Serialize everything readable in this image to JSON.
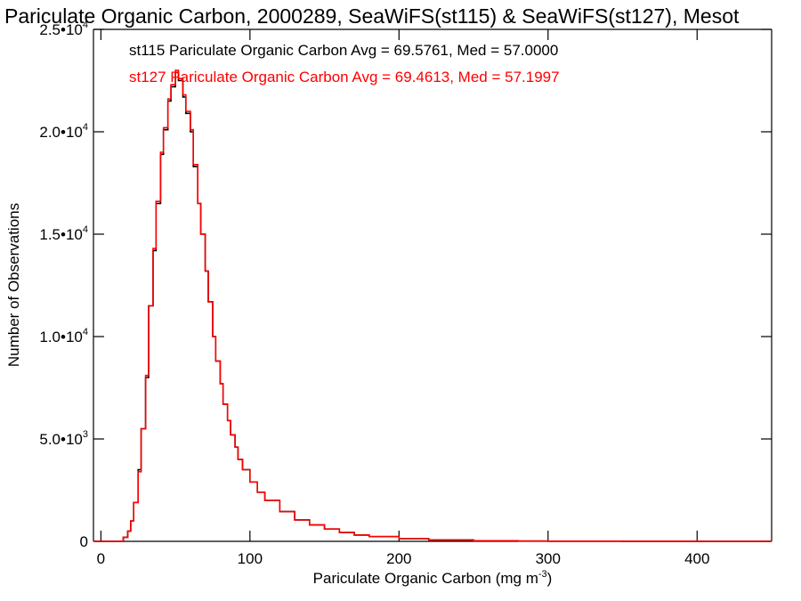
{
  "chart_data": {
    "type": "line",
    "title": "Pariculate Organic Carbon, 2000289, SeaWiFS(st115) & SeaWiFS(st127), Mesot",
    "xlabel": "Pariculate Organic Carbon (mg m",
    "xlabel_sup": "-3",
    "xlabel_end": ")",
    "ylabel": "Number of Observations",
    "xlim": [
      -5,
      450
    ],
    "ylim": [
      0,
      25000
    ],
    "x_ticks": [
      {
        "value": 0,
        "label": "0"
      },
      {
        "value": 100,
        "label": "100"
      },
      {
        "value": 200,
        "label": "200"
      },
      {
        "value": 300,
        "label": "300"
      },
      {
        "value": 400,
        "label": "400"
      }
    ],
    "y_ticks": [
      {
        "value": 0,
        "base": "0",
        "exp": ""
      },
      {
        "value": 5000,
        "base": "5.0•10",
        "exp": "3"
      },
      {
        "value": 10000,
        "base": "1.0•10",
        "exp": "4"
      },
      {
        "value": 15000,
        "base": "1.5•10",
        "exp": "4"
      },
      {
        "value": 20000,
        "base": "2.0•10",
        "exp": "4"
      },
      {
        "value": 25000,
        "base": "2.5•10",
        "exp": "4"
      }
    ],
    "legend": [
      "st115 Pariculate Organic Carbon Avg = 69.5761, Med = 57.0000",
      "st127 Pariculate Organic Carbon Avg = 69.4613, Med = 57.1997"
    ],
    "legend_placement": "top-left",
    "x": [
      -5,
      10,
      15,
      18,
      20,
      22,
      25,
      27,
      30,
      32,
      35,
      37,
      40,
      42,
      45,
      47,
      50,
      52,
      55,
      57,
      60,
      62,
      65,
      67,
      70,
      72,
      75,
      77,
      80,
      82,
      85,
      87,
      90,
      92,
      95,
      100,
      105,
      110,
      120,
      130,
      140,
      150,
      160,
      170,
      180,
      200,
      220,
      250,
      280,
      300,
      350,
      400,
      450
    ],
    "series": [
      {
        "name": "st115",
        "color": "#000000",
        "values": [
          0,
          0,
          200,
          500,
          1000,
          1900,
          3500,
          5500,
          8000,
          11500,
          14200,
          16500,
          18900,
          20100,
          21500,
          22200,
          22900,
          22500,
          21700,
          20900,
          20000,
          18300,
          16500,
          15000,
          13200,
          11700,
          10000,
          8800,
          7700,
          6700,
          5900,
          5200,
          4600,
          4000,
          3500,
          2900,
          2400,
          2000,
          1450,
          1050,
          800,
          600,
          430,
          310,
          230,
          130,
          70,
          30,
          15,
          8,
          3,
          1,
          0
        ]
      },
      {
        "name": "st127",
        "color": "#ff0000",
        "values": [
          0,
          0,
          200,
          500,
          1000,
          1900,
          3400,
          5500,
          8100,
          11500,
          14300,
          16600,
          19000,
          20200,
          21600,
          22300,
          23000,
          22600,
          21800,
          21000,
          20100,
          18400,
          16500,
          15000,
          13200,
          11700,
          10000,
          8800,
          7700,
          6700,
          5900,
          5200,
          4600,
          4000,
          3500,
          2900,
          2400,
          2000,
          1450,
          1050,
          800,
          600,
          430,
          310,
          230,
          130,
          70,
          30,
          15,
          8,
          3,
          1,
          0
        ]
      }
    ]
  }
}
